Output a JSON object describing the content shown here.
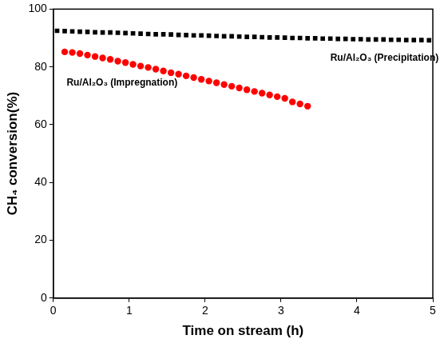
{
  "chart_data": {
    "type": "scatter",
    "x_label": "Time on stream (h)",
    "y_label": "CH₄ conversion(%)",
    "xlim": [
      0,
      5
    ],
    "xticks": [
      0,
      1,
      2,
      3,
      4,
      5
    ],
    "ylim": [
      0,
      100
    ],
    "yticks": [
      0,
      20,
      40,
      60,
      80,
      100
    ],
    "grid": false,
    "series": [
      {
        "name": "Ru/Al₂O₃ (Precipitation)",
        "color": "#000000",
        "marker": "square",
        "x": [
          0.05,
          0.15,
          0.25,
          0.35,
          0.45,
          0.55,
          0.65,
          0.75,
          0.85,
          0.95,
          1.05,
          1.15,
          1.25,
          1.35,
          1.45,
          1.55,
          1.65,
          1.75,
          1.85,
          1.95,
          2.05,
          2.15,
          2.25,
          2.35,
          2.45,
          2.55,
          2.65,
          2.75,
          2.85,
          2.95,
          3.05,
          3.15,
          3.25,
          3.35,
          3.45,
          3.55,
          3.65,
          3.75,
          3.85,
          3.95,
          4.05,
          4.15,
          4.25,
          4.35,
          4.45,
          4.55,
          4.65,
          4.75,
          4.85,
          4.95
        ],
        "values": [
          92.5,
          92.4,
          92.3,
          92.2,
          92.1,
          92.0,
          91.9,
          91.9,
          91.8,
          91.7,
          91.6,
          91.5,
          91.4,
          91.3,
          91.3,
          91.2,
          91.1,
          91.0,
          90.9,
          90.9,
          90.8,
          90.7,
          90.6,
          90.6,
          90.5,
          90.4,
          90.4,
          90.3,
          90.2,
          90.2,
          90.1,
          90.0,
          90.0,
          89.9,
          89.9,
          89.8,
          89.8,
          89.7,
          89.7,
          89.6,
          89.6,
          89.5,
          89.5,
          89.5,
          89.4,
          89.4,
          89.3,
          89.3,
          89.3,
          89.2
        ]
      },
      {
        "name": "Ru/Al₂O₃ (Impregnation)",
        "color": "#ff0000",
        "marker": "circle",
        "x": [
          0.15,
          0.25,
          0.35,
          0.45,
          0.55,
          0.65,
          0.75,
          0.85,
          0.95,
          1.05,
          1.15,
          1.25,
          1.35,
          1.45,
          1.55,
          1.65,
          1.75,
          1.85,
          1.95,
          2.05,
          2.15,
          2.25,
          2.35,
          2.45,
          2.55,
          2.65,
          2.75,
          2.85,
          2.95,
          3.05,
          3.15,
          3.25,
          3.35
        ],
        "values": [
          85.2,
          85.0,
          84.6,
          84.1,
          83.6,
          83.1,
          82.6,
          82.0,
          81.5,
          80.9,
          80.3,
          79.8,
          79.2,
          78.6,
          78.0,
          77.5,
          76.9,
          76.3,
          75.7,
          75.1,
          74.5,
          73.9,
          73.3,
          72.7,
          72.1,
          71.5,
          70.9,
          70.3,
          69.7,
          69.1,
          67.9,
          67.2,
          66.4
        ]
      }
    ]
  }
}
